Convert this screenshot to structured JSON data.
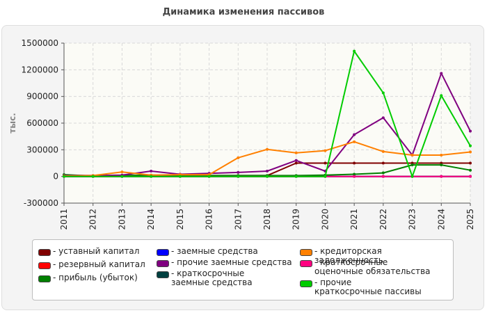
{
  "chart_data": {
    "type": "line",
    "title": "Динамика изменения пассивов",
    "ylabel": "тыс.",
    "xlabel": "",
    "x": [
      "2011",
      "2012",
      "2013",
      "2014",
      "2015",
      "2016",
      "2017",
      "2018",
      "2019",
      "2020",
      "2021",
      "2022",
      "2023",
      "2024",
      "2025"
    ],
    "ylim": [
      -300000,
      1500000
    ],
    "yticks": [
      -300000,
      0,
      300000,
      600000,
      900000,
      1200000,
      1500000
    ],
    "ytick_labels": [
      "-300000",
      "0",
      "300000",
      "600000",
      "900000",
      "1200000",
      "1500000"
    ],
    "grid": true,
    "legend_position": "bottom",
    "series": [
      {
        "name": "уставный капитал",
        "color": "#800000",
        "values": [
          10000,
          10000,
          10000,
          10000,
          10000,
          10000,
          10000,
          10000,
          150000,
          150000,
          150000,
          150000,
          150000,
          150000,
          150000
        ]
      },
      {
        "name": "резервный капитал",
        "color": "#ff0000",
        "values": [
          0,
          0,
          0,
          0,
          0,
          0,
          0,
          0,
          0,
          0,
          0,
          0,
          0,
          0,
          0
        ]
      },
      {
        "name": "прибыль (убыток)",
        "color": "#008000",
        "values": [
          20000,
          5000,
          10000,
          15000,
          10000,
          10000,
          10000,
          10000,
          10000,
          15000,
          25000,
          40000,
          130000,
          130000,
          70000
        ]
      },
      {
        "name": "заемные средства",
        "color": "#0000ff",
        "values": [
          0,
          0,
          0,
          0,
          0,
          0,
          0,
          0,
          0,
          0,
          0,
          0,
          0,
          0,
          0
        ]
      },
      {
        "name": "прочие заемные средства",
        "color": "#800080",
        "values": [
          10000,
          10000,
          15000,
          60000,
          25000,
          35000,
          45000,
          60000,
          180000,
          60000,
          470000,
          660000,
          240000,
          1160000,
          510000
        ]
      },
      {
        "name": "краткосрочные заемные средства",
        "color": "#004040",
        "values": [
          0,
          0,
          0,
          0,
          0,
          0,
          0,
          0,
          0,
          0,
          0,
          0,
          0,
          0,
          0
        ]
      },
      {
        "name": "кредиторская задолженность",
        "color": "#ff8000",
        "values": [
          5000,
          10000,
          50000,
          15000,
          20000,
          20000,
          210000,
          305000,
          265000,
          290000,
          390000,
          280000,
          240000,
          240000,
          275000
        ]
      },
      {
        "name": "краткосрочные оценочные обязательства",
        "color": "#ff0080",
        "values": [
          0,
          0,
          0,
          0,
          0,
          0,
          0,
          0,
          0,
          0,
          0,
          0,
          0,
          0,
          0
        ]
      },
      {
        "name": "прочие краткосрочные пассивы",
        "color": "#00cc00",
        "values": [
          0,
          0,
          0,
          0,
          0,
          0,
          0,
          0,
          0,
          0,
          1410000,
          940000,
          0,
          910000,
          345000
        ]
      }
    ]
  }
}
